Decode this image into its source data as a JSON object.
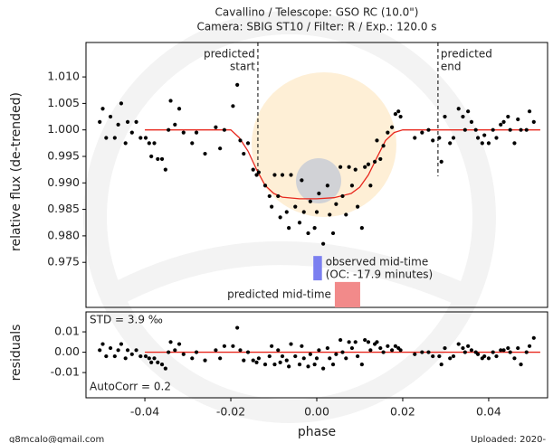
{
  "chart_data": [
    {
      "type": "scatter",
      "title": [
        "Cavallino / Telescope: GSO RC (10.0\")",
        "Camera: SBIG ST10 / Filter: R / Exp.: 120.0 s"
      ],
      "y_label": "relative flux (de-trended)",
      "color": "#000000",
      "xlim": [
        -0.0537,
        0.0537
      ],
      "ylim": [
        0.9665,
        1.0165
      ],
      "yticks": [
        {
          "value": 1.01,
          "label": "1.010"
        },
        1.005,
        {
          "value": 1.0,
          "label": "1.000"
        },
        0.995,
        {
          "value": 0.99,
          "label": "0.990"
        },
        0.985,
        {
          "value": 0.98,
          "label": "0.980"
        },
        0.975
      ],
      "x": [
        -0.0505,
        -0.0498,
        -0.049,
        -0.048,
        -0.047,
        -0.0462,
        -0.0455,
        -0.0445,
        -0.044,
        -0.043,
        -0.042,
        -0.041,
        -0.0398,
        -0.039,
        -0.0385,
        -0.0378,
        -0.037,
        -0.036,
        -0.0352,
        -0.0345,
        -0.034,
        -0.033,
        -0.032,
        -0.031,
        -0.029,
        -0.028,
        -0.026,
        -0.0235,
        -0.0225,
        -0.0215,
        -0.0195,
        -0.0185,
        -0.0178,
        -0.017,
        -0.016,
        -0.0148,
        -0.014,
        -0.0135,
        -0.012,
        -0.011,
        -0.0105,
        -0.0098,
        -0.009,
        -0.0085,
        -0.008,
        -0.007,
        -0.0065,
        -0.006,
        -0.005,
        -0.004,
        -0.0035,
        -0.003,
        -0.002,
        -0.0015,
        -0.0005,
        0.0,
        0.0005,
        0.0015,
        0.0025,
        0.003,
        0.0038,
        0.0045,
        0.0055,
        0.006,
        0.0068,
        0.0075,
        0.0082,
        0.009,
        0.0095,
        0.0105,
        0.0112,
        0.012,
        0.0125,
        0.0135,
        0.014,
        0.0148,
        0.0155,
        0.0165,
        0.0175,
        0.0183,
        0.019,
        0.0195,
        0.0228,
        0.0245,
        0.026,
        0.027,
        0.0285,
        0.029,
        0.0298,
        0.031,
        0.0318,
        0.033,
        0.034,
        0.0345,
        0.0352,
        0.036,
        0.037,
        0.0375,
        0.0385,
        0.039,
        0.04,
        0.041,
        0.0418,
        0.0428,
        0.0435,
        0.0445,
        0.045,
        0.046,
        0.0468,
        0.0475,
        0.0488,
        0.0495,
        0.0505
      ],
      "values": [
        1.0015,
        1.004,
        0.9985,
        1.0025,
        0.9985,
        1.001,
        1.005,
        0.9975,
        1.0015,
        0.9995,
        1.0015,
        0.9985,
        0.9985,
        0.9975,
        0.995,
        0.9975,
        0.9945,
        0.9945,
        0.9925,
        1.0,
        1.0055,
        1.001,
        1.004,
        0.9995,
        0.9975,
        0.9995,
        0.9955,
        1.0005,
        0.9965,
        1.0,
        1.0045,
        1.0085,
        0.998,
        0.9955,
        0.9975,
        0.9925,
        0.9915,
        0.992,
        0.9895,
        0.9875,
        0.9855,
        0.9915,
        0.9875,
        0.9835,
        0.9915,
        0.9845,
        0.9815,
        0.9915,
        0.9855,
        0.9825,
        0.9905,
        0.9845,
        0.9805,
        0.9865,
        0.9815,
        0.9845,
        0.988,
        0.9785,
        0.9895,
        0.984,
        0.9805,
        0.986,
        0.993,
        0.9875,
        0.984,
        0.993,
        0.9895,
        0.9925,
        0.9855,
        0.9815,
        0.993,
        0.9935,
        0.9895,
        0.994,
        0.998,
        0.9945,
        0.997,
        0.9995,
        1.0005,
        1.003,
        1.0035,
        1.0025,
        0.9985,
        0.9995,
        1.0,
        0.998,
        0.9985,
        0.994,
        1.0025,
        0.9975,
        0.9985,
        1.004,
        1.0025,
        1.0,
        1.0035,
        1.0015,
        1.0,
        0.9985,
        0.9975,
        0.999,
        0.9975,
        1.0,
        0.9985,
        1.001,
        1.0015,
        1.0025,
        1.0,
        0.9975,
        1.002,
        1.0,
        1.0,
        1.0035,
        1.0015
      ],
      "model": {
        "color": "#e8281e",
        "x": [
          -0.04,
          -0.02,
          -0.018,
          -0.016,
          -0.014,
          -0.012,
          -0.01,
          -0.008,
          -0.004,
          0.0,
          0.004,
          0.008,
          0.01,
          0.012,
          0.014,
          0.016,
          0.018,
          0.02,
          0.052
        ],
        "values": [
          1.0,
          1.0,
          0.9985,
          0.996,
          0.9925,
          0.9895,
          0.988,
          0.9873,
          0.987,
          0.987,
          0.9872,
          0.988,
          0.9892,
          0.9915,
          0.9948,
          0.998,
          0.9995,
          1.0,
          1.0
        ]
      },
      "predicted_start": {
        "x": -0.0137,
        "label": [
          "predicted",
          "start"
        ]
      },
      "predicted_end": {
        "x": 0.0282,
        "label": [
          "predicted",
          "end"
        ]
      },
      "observed_mid": {
        "x": [
          -0.0008,
          0.0012
        ],
        "y": [
          0.9716,
          0.9762
        ],
        "color": "#7b7ff0",
        "label": [
          "observed mid-time",
          "(OC: -17.9 minutes)"
        ]
      },
      "predicted_mid": {
        "x": [
          0.0042,
          0.0101
        ],
        "y": [
          0.9665,
          0.9713
        ],
        "color": "#f28a8a",
        "label": "predicted mid-time"
      }
    },
    {
      "type": "scatter",
      "y_label": "residuals",
      "x_label": "phase",
      "color": "#000000",
      "xlim": [
        -0.0537,
        0.0537
      ],
      "ylim": [
        -0.0224,
        0.0198
      ],
      "yticks": [
        0.01,
        {
          "value": 0,
          "label": "0.00"
        },
        -0.01
      ],
      "xticks": [
        -0.04,
        -0.02,
        {
          "value": 0,
          "label": "0.00"
        },
        0.02,
        0.04
      ],
      "values": [
        0.001,
        0.004,
        -0.002,
        0.002,
        -0.002,
        0.001,
        0.004,
        -0.003,
        0.001,
        -0.001,
        0.001,
        -0.002,
        -0.002,
        -0.003,
        -0.005,
        -0.003,
        -0.005,
        -0.006,
        -0.008,
        0.0,
        0.005,
        0.001,
        0.004,
        -0.001,
        -0.003,
        0.0,
        -0.004,
        0.001,
        -0.003,
        0.003,
        0.003,
        0.012,
        0.001,
        -0.004,
        0.0,
        -0.004,
        -0.005,
        -0.003,
        -0.006,
        -0.002,
        0.003,
        -0.006,
        0.001,
        -0.005,
        -0.002,
        -0.004,
        -0.007,
        0.004,
        -0.002,
        -0.006,
        0.003,
        -0.003,
        -0.007,
        -0.001,
        -0.006,
        -0.003,
        0.001,
        -0.008,
        0.002,
        -0.003,
        -0.006,
        -0.001,
        0.006,
        0.0,
        -0.003,
        0.005,
        0.002,
        0.005,
        -0.002,
        -0.006,
        0.006,
        0.005,
        0.001,
        0.004,
        0.005,
        0.002,
        0.0,
        0.003,
        0.001,
        0.003,
        0.002,
        0.001,
        -0.001,
        0.0,
        0.0,
        -0.002,
        -0.002,
        -0.006,
        0.002,
        -0.003,
        -0.002,
        0.004,
        0.002,
        0.0,
        0.003,
        0.001,
        0.0,
        -0.001,
        -0.003,
        -0.002,
        -0.003,
        0.0,
        -0.002,
        0.001,
        0.001,
        0.002,
        0.0,
        -0.003,
        0.002,
        -0.006,
        0.0,
        0.003,
        0.007
      ],
      "model": {
        "color": "#e8281e",
        "x": [
          -0.04,
          0.052
        ],
        "values": [
          0,
          0
        ]
      },
      "annotations": [
        "STD = 3.9 ‰",
        "AutoCorr = 0.2"
      ]
    }
  ],
  "footer": {
    "contact": "g8mcalo@gmail.com",
    "uploaded": "Uploaded: 2020-"
  }
}
